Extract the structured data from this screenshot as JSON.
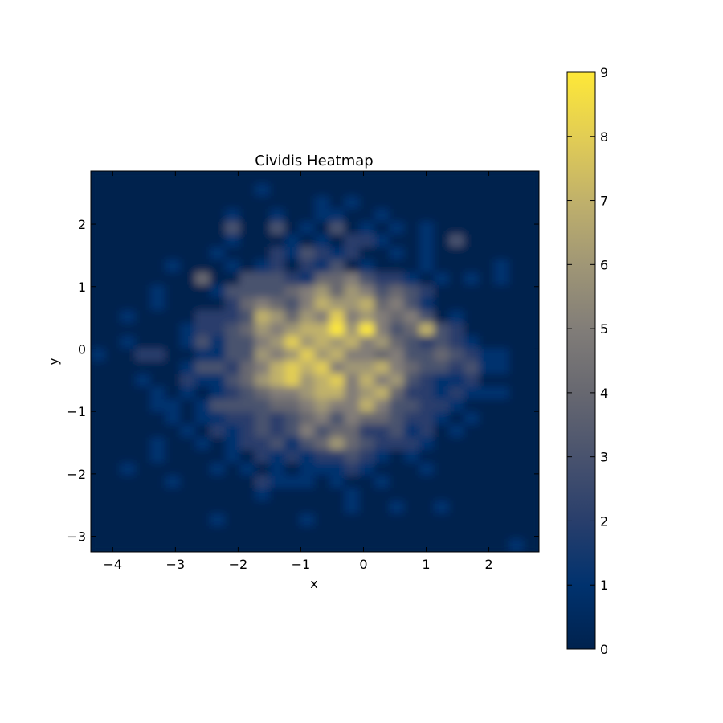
{
  "chart_data": {
    "type": "heatmap",
    "title": "Cividis Heatmap",
    "xlabel": "x",
    "ylabel": "y",
    "xlim": [
      -4.35,
      2.8
    ],
    "ylim": [
      -3.25,
      2.85
    ],
    "x_ticks": [
      -4,
      -3,
      -2,
      -1,
      0,
      1,
      2
    ],
    "y_ticks": [
      -3,
      -2,
      -1,
      0,
      1,
      2
    ],
    "x_tick_labels": [
      "−4",
      "−3",
      "−2",
      "−1",
      "0",
      "1",
      "2"
    ],
    "y_tick_labels": [
      "−3",
      "−2",
      "−1",
      "0",
      "1",
      "2"
    ],
    "colormap": "cividis",
    "colorbar": {
      "range": [
        0,
        9
      ],
      "ticks": [
        0,
        1,
        2,
        3,
        4,
        5,
        6,
        7,
        8,
        9
      ],
      "tick_labels": [
        "0",
        "1",
        "2",
        "3",
        "4",
        "5",
        "6",
        "7",
        "8",
        "9"
      ]
    },
    "interpolation": "smooth",
    "grid": false,
    "bins": {
      "nx": 30,
      "ny": 30,
      "note_values": "counts per bin, row 0 = top (y max), col 0 = left (x min)",
      "values": [
        [
          0,
          0,
          0,
          0,
          0,
          0,
          0,
          0,
          0,
          0,
          0,
          0,
          0,
          0,
          0,
          0,
          0,
          0,
          0,
          0,
          0,
          0,
          0,
          0,
          0,
          0,
          0,
          0,
          0,
          0
        ],
        [
          0,
          0,
          0,
          0,
          0,
          0,
          0,
          0,
          0,
          0,
          0,
          1,
          0,
          0,
          0,
          0,
          0,
          0,
          0,
          0,
          0,
          0,
          0,
          0,
          0,
          0,
          0,
          0,
          0,
          0
        ],
        [
          0,
          0,
          0,
          0,
          0,
          0,
          0,
          0,
          0,
          0,
          0,
          0,
          0,
          0,
          0,
          1,
          0,
          1,
          0,
          0,
          0,
          0,
          0,
          0,
          0,
          0,
          0,
          0,
          0,
          0
        ],
        [
          0,
          0,
          0,
          0,
          0,
          0,
          0,
          0,
          0,
          1,
          0,
          0,
          1,
          0,
          0,
          1,
          1,
          0,
          0,
          1,
          0,
          0,
          0,
          0,
          0,
          0,
          0,
          0,
          0,
          0
        ],
        [
          0,
          0,
          0,
          0,
          0,
          0,
          0,
          0,
          0,
          3,
          0,
          0,
          3,
          0,
          1,
          0,
          3,
          0,
          1,
          0,
          1,
          0,
          1,
          0,
          0,
          0,
          0,
          0,
          0,
          0
        ],
        [
          0,
          0,
          0,
          0,
          0,
          0,
          0,
          0,
          0,
          1,
          0,
          0,
          0,
          1,
          0,
          1,
          0,
          2,
          2,
          1,
          0,
          0,
          1,
          0,
          3,
          0,
          0,
          0,
          0,
          0
        ],
        [
          0,
          0,
          0,
          0,
          0,
          0,
          0,
          0,
          1,
          0,
          0,
          0,
          2,
          1,
          3,
          2,
          1,
          2,
          0,
          0,
          1,
          0,
          1,
          0,
          0,
          0,
          0,
          0,
          0,
          0
        ],
        [
          0,
          0,
          0,
          0,
          0,
          1,
          0,
          0,
          0,
          1,
          0,
          1,
          2,
          0,
          2,
          1,
          3,
          0,
          1,
          0,
          0,
          0,
          1,
          0,
          0,
          0,
          0,
          1,
          0,
          0
        ],
        [
          0,
          0,
          0,
          0,
          0,
          0,
          0,
          4,
          0,
          0,
          3,
          3,
          3,
          2,
          1,
          4,
          4,
          5,
          3,
          2,
          2,
          1,
          0,
          1,
          0,
          1,
          0,
          1,
          0,
          0
        ],
        [
          0,
          0,
          0,
          0,
          1,
          0,
          0,
          0,
          1,
          3,
          3,
          3,
          3,
          4,
          5,
          6,
          4,
          6,
          5,
          3,
          4,
          3,
          2,
          0,
          0,
          0,
          0,
          0,
          0,
          0
        ],
        [
          0,
          0,
          0,
          0,
          1,
          0,
          0,
          0,
          0,
          2,
          4,
          5,
          4,
          3,
          5,
          7,
          6,
          6,
          7,
          4,
          5,
          3,
          1,
          0,
          0,
          0,
          0,
          0,
          0,
          0
        ],
        [
          0,
          0,
          1,
          0,
          0,
          0,
          0,
          2,
          2,
          2,
          3,
          7,
          6,
          4,
          6,
          5,
          8,
          5,
          6,
          5,
          4,
          5,
          3,
          0,
          1,
          0,
          0,
          0,
          0,
          0
        ],
        [
          0,
          0,
          0,
          0,
          0,
          0,
          1,
          2,
          2,
          3,
          4,
          6,
          5,
          6,
          7,
          7,
          9,
          6,
          9,
          5,
          3,
          4,
          7,
          3,
          2,
          0,
          0,
          0,
          0,
          0
        ],
        [
          0,
          0,
          1,
          0,
          0,
          0,
          1,
          3,
          1,
          3,
          3,
          5,
          6,
          8,
          6,
          7,
          6,
          7,
          5,
          6,
          4,
          3,
          2,
          3,
          2,
          1,
          0,
          0,
          0,
          0
        ],
        [
          1,
          0,
          0,
          2,
          2,
          0,
          0,
          1,
          1,
          3,
          3,
          6,
          5,
          6,
          8,
          6,
          7,
          5,
          5,
          4,
          5,
          3,
          3,
          4,
          3,
          2,
          1,
          1,
          0,
          0
        ],
        [
          0,
          0,
          0,
          0,
          0,
          0,
          1,
          3,
          3,
          2,
          4,
          5,
          7,
          8,
          7,
          8,
          5,
          6,
          6,
          7,
          5,
          4,
          3,
          3,
          2,
          3,
          1,
          1,
          0,
          0
        ],
        [
          0,
          0,
          0,
          1,
          0,
          0,
          2,
          1,
          1,
          3,
          4,
          6,
          7,
          8,
          6,
          7,
          8,
          5,
          7,
          5,
          6,
          3,
          2,
          1,
          1,
          2,
          0,
          0,
          0,
          0
        ],
        [
          0,
          0,
          0,
          0,
          1,
          0,
          1,
          0,
          1,
          2,
          3,
          4,
          5,
          5,
          6,
          7,
          7,
          5,
          6,
          7,
          4,
          2,
          2,
          1,
          2,
          1,
          1,
          1,
          0,
          0
        ],
        [
          0,
          0,
          0,
          0,
          1,
          1,
          0,
          1,
          3,
          3,
          3,
          3,
          4,
          4,
          5,
          6,
          5,
          5,
          7,
          5,
          3,
          3,
          2,
          2,
          1,
          0,
          0,
          0,
          0,
          0
        ],
        [
          0,
          0,
          0,
          0,
          0,
          1,
          0,
          1,
          1,
          2,
          2,
          3,
          2,
          3,
          4,
          5,
          3,
          5,
          4,
          4,
          3,
          2,
          2,
          1,
          0,
          1,
          0,
          0,
          0,
          0
        ],
        [
          0,
          0,
          0,
          0,
          0,
          0,
          1,
          0,
          2,
          1,
          2,
          3,
          2,
          3,
          5,
          3,
          4,
          4,
          2,
          2,
          3,
          1,
          2,
          0,
          1,
          0,
          0,
          0,
          0,
          0
        ],
        [
          0,
          0,
          0,
          0,
          1,
          0,
          0,
          1,
          0,
          1,
          2,
          2,
          3,
          1,
          3,
          4,
          6,
          4,
          3,
          2,
          2,
          2,
          1,
          0,
          0,
          0,
          0,
          0,
          0,
          0
        ],
        [
          0,
          0,
          0,
          0,
          1,
          0,
          0,
          0,
          0,
          1,
          0,
          2,
          1,
          2,
          1,
          2,
          2,
          3,
          2,
          1,
          0,
          1,
          0,
          0,
          0,
          0,
          0,
          0,
          0,
          0
        ],
        [
          0,
          0,
          1,
          0,
          0,
          0,
          0,
          0,
          1,
          0,
          1,
          0,
          1,
          0,
          1,
          1,
          1,
          2,
          1,
          0,
          0,
          0,
          1,
          0,
          0,
          0,
          0,
          0,
          0,
          0
        ],
        [
          0,
          0,
          0,
          0,
          0,
          1,
          0,
          0,
          0,
          0,
          0,
          2,
          1,
          1,
          1,
          0,
          1,
          0,
          0,
          1,
          0,
          0,
          0,
          0,
          0,
          0,
          0,
          0,
          0,
          0
        ],
        [
          0,
          0,
          0,
          0,
          0,
          0,
          0,
          0,
          0,
          0,
          0,
          1,
          0,
          0,
          0,
          0,
          0,
          1,
          0,
          0,
          0,
          0,
          0,
          0,
          0,
          0,
          0,
          0,
          0,
          0
        ],
        [
          0,
          0,
          0,
          0,
          0,
          0,
          0,
          0,
          0,
          0,
          0,
          0,
          0,
          0,
          0,
          0,
          0,
          1,
          0,
          0,
          1,
          0,
          0,
          1,
          0,
          0,
          0,
          0,
          0,
          0
        ],
        [
          0,
          0,
          0,
          0,
          0,
          0,
          0,
          0,
          1,
          0,
          0,
          0,
          0,
          0,
          1,
          0,
          0,
          0,
          0,
          0,
          0,
          0,
          0,
          0,
          0,
          0,
          0,
          0,
          0,
          0
        ],
        [
          0,
          0,
          0,
          0,
          0,
          0,
          0,
          0,
          0,
          0,
          0,
          0,
          0,
          0,
          0,
          0,
          0,
          0,
          0,
          0,
          0,
          0,
          0,
          0,
          0,
          0,
          0,
          0,
          0,
          0
        ],
        [
          0,
          0,
          0,
          0,
          0,
          0,
          0,
          0,
          0,
          0,
          0,
          0,
          0,
          0,
          0,
          0,
          0,
          0,
          0,
          0,
          0,
          0,
          0,
          0,
          0,
          0,
          0,
          0,
          1,
          0
        ]
      ]
    }
  },
  "colors": {
    "cmap_low": "#00224e",
    "cmap_mid": "#7c7b78",
    "cmap_high": "#fee838"
  }
}
